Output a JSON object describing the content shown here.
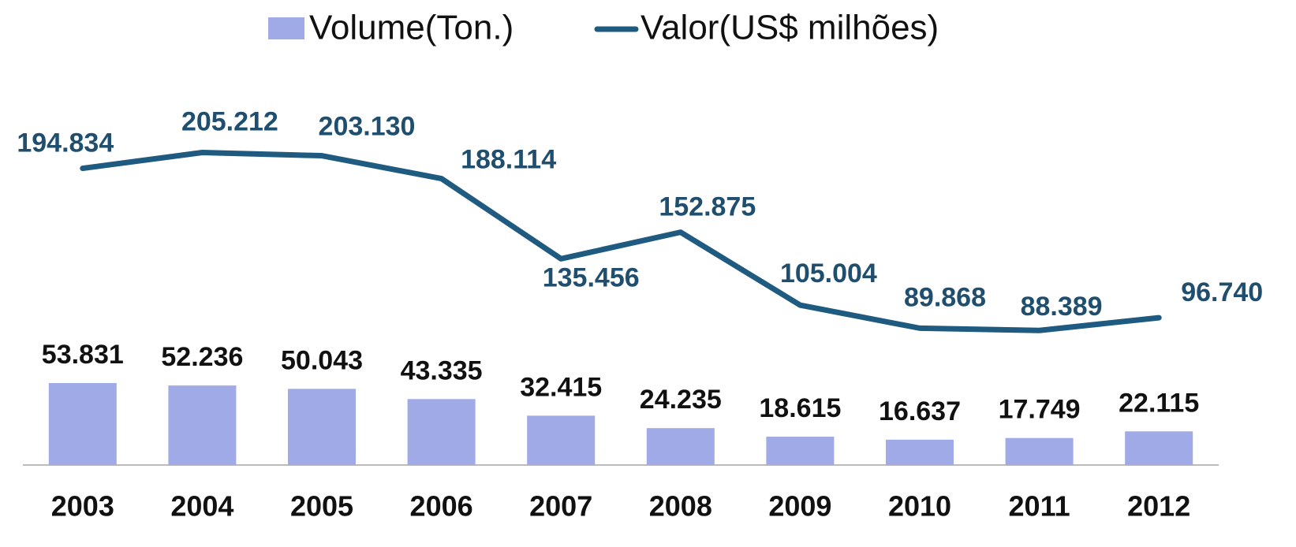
{
  "chart_data": {
    "type": "bar_line",
    "categories": [
      "2003",
      "2004",
      "2005",
      "2006",
      "2007",
      "2008",
      "2009",
      "2010",
      "2011",
      "2012"
    ],
    "series": [
      {
        "name": "Volume(Ton.)",
        "type": "bar",
        "color": "#a0aae6",
        "values": [
          53831,
          52236,
          50043,
          43335,
          32415,
          24235,
          18615,
          16637,
          17749,
          22115
        ],
        "value_labels": [
          "53.831",
          "52.236",
          "50.043",
          "43.335",
          "32.415",
          "24.235",
          "18.615",
          "16.637",
          "17.749",
          "22.115"
        ]
      },
      {
        "name": "Valor(US$ milhões)",
        "type": "line",
        "axis": "y2",
        "color": "#1f5a80",
        "values": [
          194834,
          205212,
          203130,
          188114,
          135456,
          152875,
          105004,
          89868,
          88389,
          96740
        ],
        "value_labels": [
          "194.834",
          "205.212",
          "203.130",
          "188.114",
          "135.456",
          "152.875",
          "105.004",
          "89.868",
          "88.389",
          "96.740"
        ]
      }
    ],
    "ylim": [
      0,
      250000
    ],
    "y2lim": [
      0,
      250000
    ],
    "legend": "top"
  }
}
